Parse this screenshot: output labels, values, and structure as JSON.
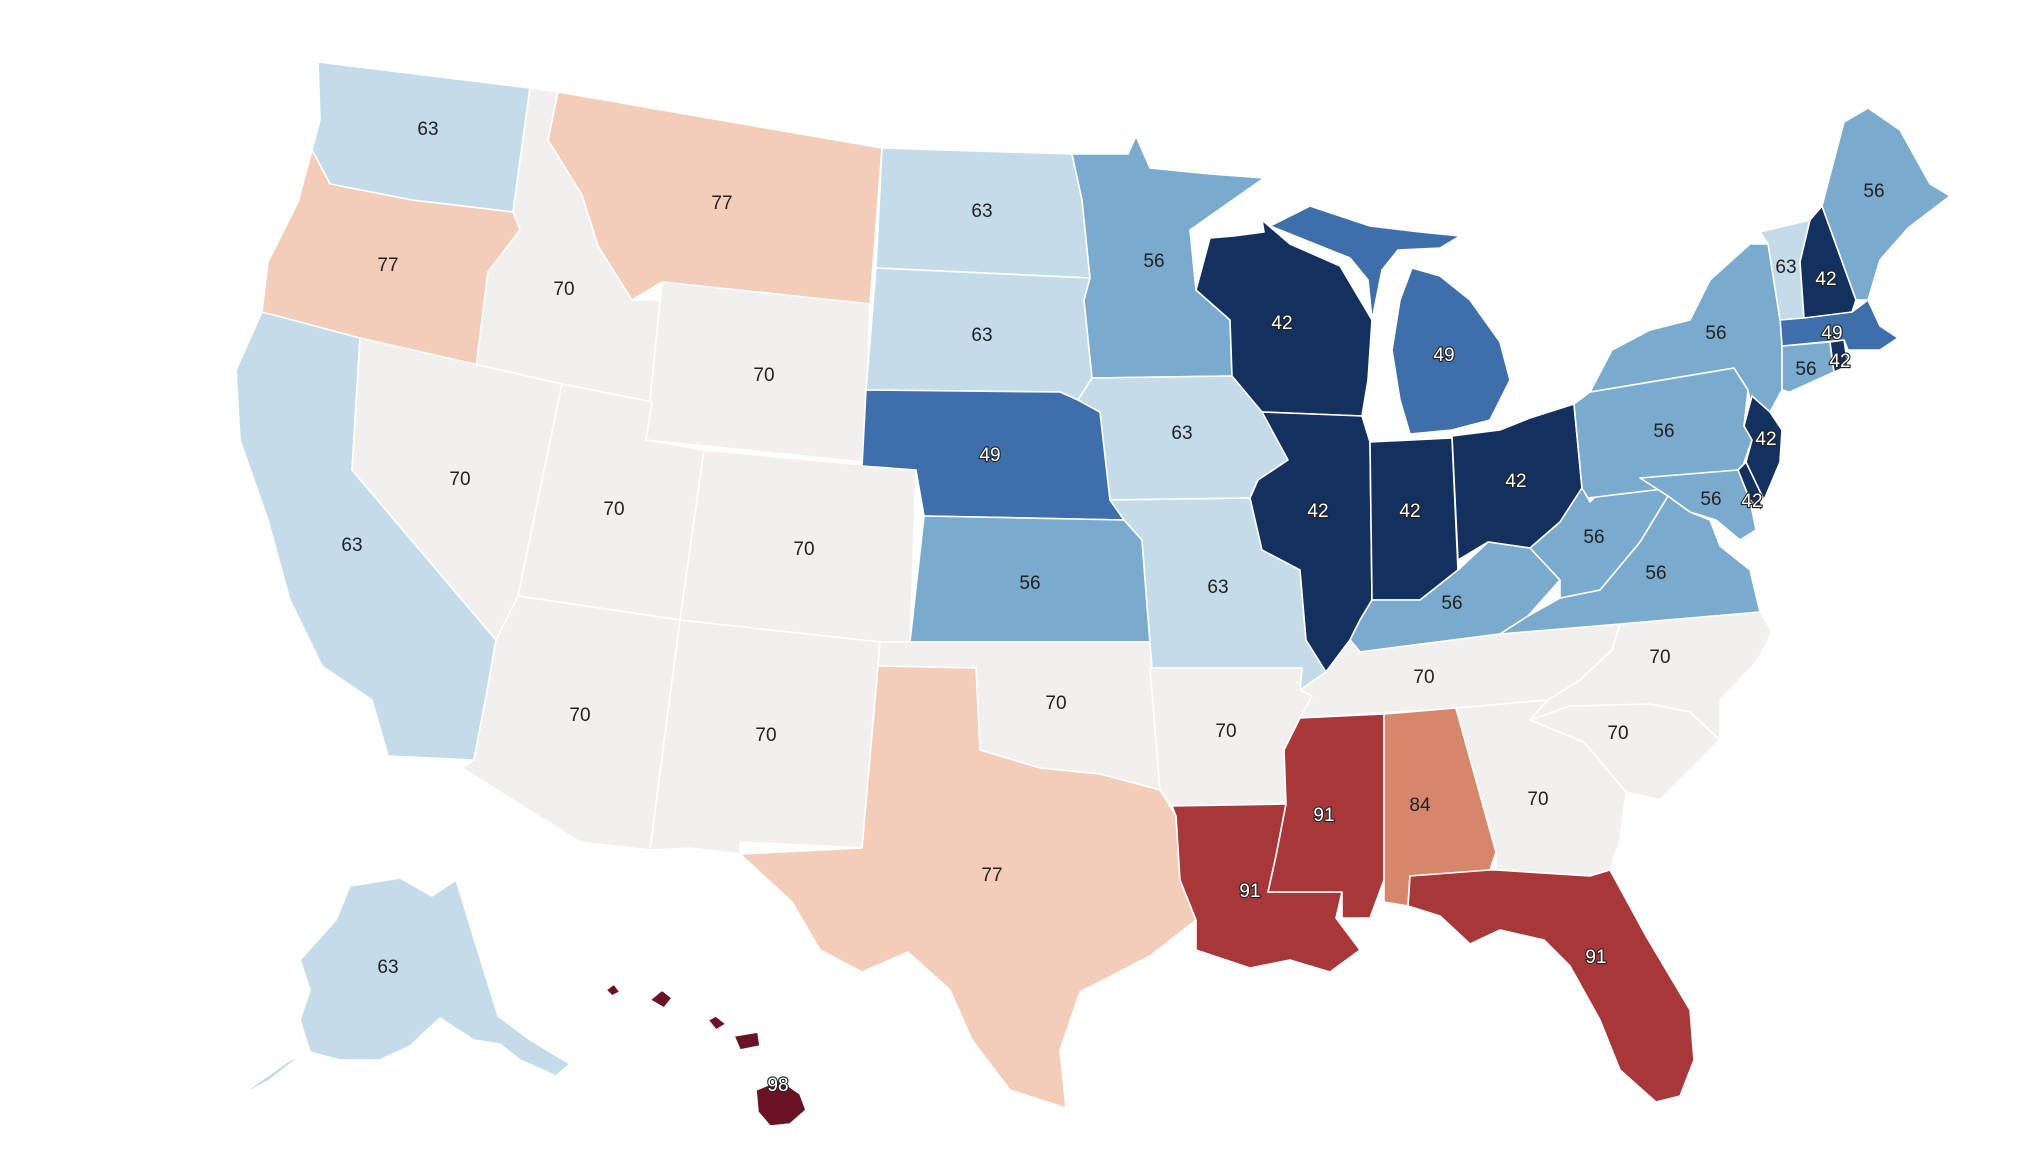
{
  "colors": {
    "42": "#14305f",
    "49": "#3e6faa",
    "56": "#7aaace",
    "63": "#c4dcea",
    "70": "#f3efef",
    "77": "#f4cdba",
    "84": "#d6876b",
    "91": "#a8373a",
    "98": "#6a1326"
  },
  "states": [
    {
      "id": "WA",
      "value": "63"
    },
    {
      "id": "OR",
      "value": "77"
    },
    {
      "id": "CA",
      "value": "63"
    },
    {
      "id": "ID",
      "value": "70"
    },
    {
      "id": "NV",
      "value": "70"
    },
    {
      "id": "MT",
      "value": "77"
    },
    {
      "id": "WY",
      "value": "70"
    },
    {
      "id": "UT",
      "value": "70"
    },
    {
      "id": "AZ",
      "value": "70"
    },
    {
      "id": "CO",
      "value": "70"
    },
    {
      "id": "NM",
      "value": "70"
    },
    {
      "id": "ND",
      "value": "63"
    },
    {
      "id": "SD",
      "value": "63"
    },
    {
      "id": "NE",
      "value": "49"
    },
    {
      "id": "KS",
      "value": "56"
    },
    {
      "id": "OK",
      "value": "70"
    },
    {
      "id": "TX",
      "value": "77"
    },
    {
      "id": "MN",
      "value": "56"
    },
    {
      "id": "IA",
      "value": "63"
    },
    {
      "id": "MO",
      "value": "63"
    },
    {
      "id": "AR",
      "value": "70"
    },
    {
      "id": "LA",
      "value": "91"
    },
    {
      "id": "WI",
      "value": "42"
    },
    {
      "id": "IL",
      "value": "42"
    },
    {
      "id": "MI",
      "value": "49"
    },
    {
      "id": "IN",
      "value": "42"
    },
    {
      "id": "OH",
      "value": "42"
    },
    {
      "id": "KY",
      "value": "56"
    },
    {
      "id": "TN",
      "value": "70"
    },
    {
      "id": "MS",
      "value": "91"
    },
    {
      "id": "AL",
      "value": "84"
    },
    {
      "id": "GA",
      "value": "70"
    },
    {
      "id": "FL",
      "value": "91"
    },
    {
      "id": "SC",
      "value": "70"
    },
    {
      "id": "NC",
      "value": "70"
    },
    {
      "id": "VA",
      "value": "56"
    },
    {
      "id": "WV",
      "value": "56"
    },
    {
      "id": "PA",
      "value": "56"
    },
    {
      "id": "NY",
      "value": "56"
    },
    {
      "id": "MD",
      "value": "56"
    },
    {
      "id": "DE",
      "value": "42"
    },
    {
      "id": "NJ",
      "value": "42"
    },
    {
      "id": "CT",
      "value": "56"
    },
    {
      "id": "RI",
      "value": "42"
    },
    {
      "id": "MA",
      "value": "49"
    },
    {
      "id": "VT",
      "value": "63"
    },
    {
      "id": "NH",
      "value": "42"
    },
    {
      "id": "ME",
      "value": "56"
    },
    {
      "id": "AK",
      "value": "63"
    },
    {
      "id": "HI",
      "value": "98"
    }
  ]
}
